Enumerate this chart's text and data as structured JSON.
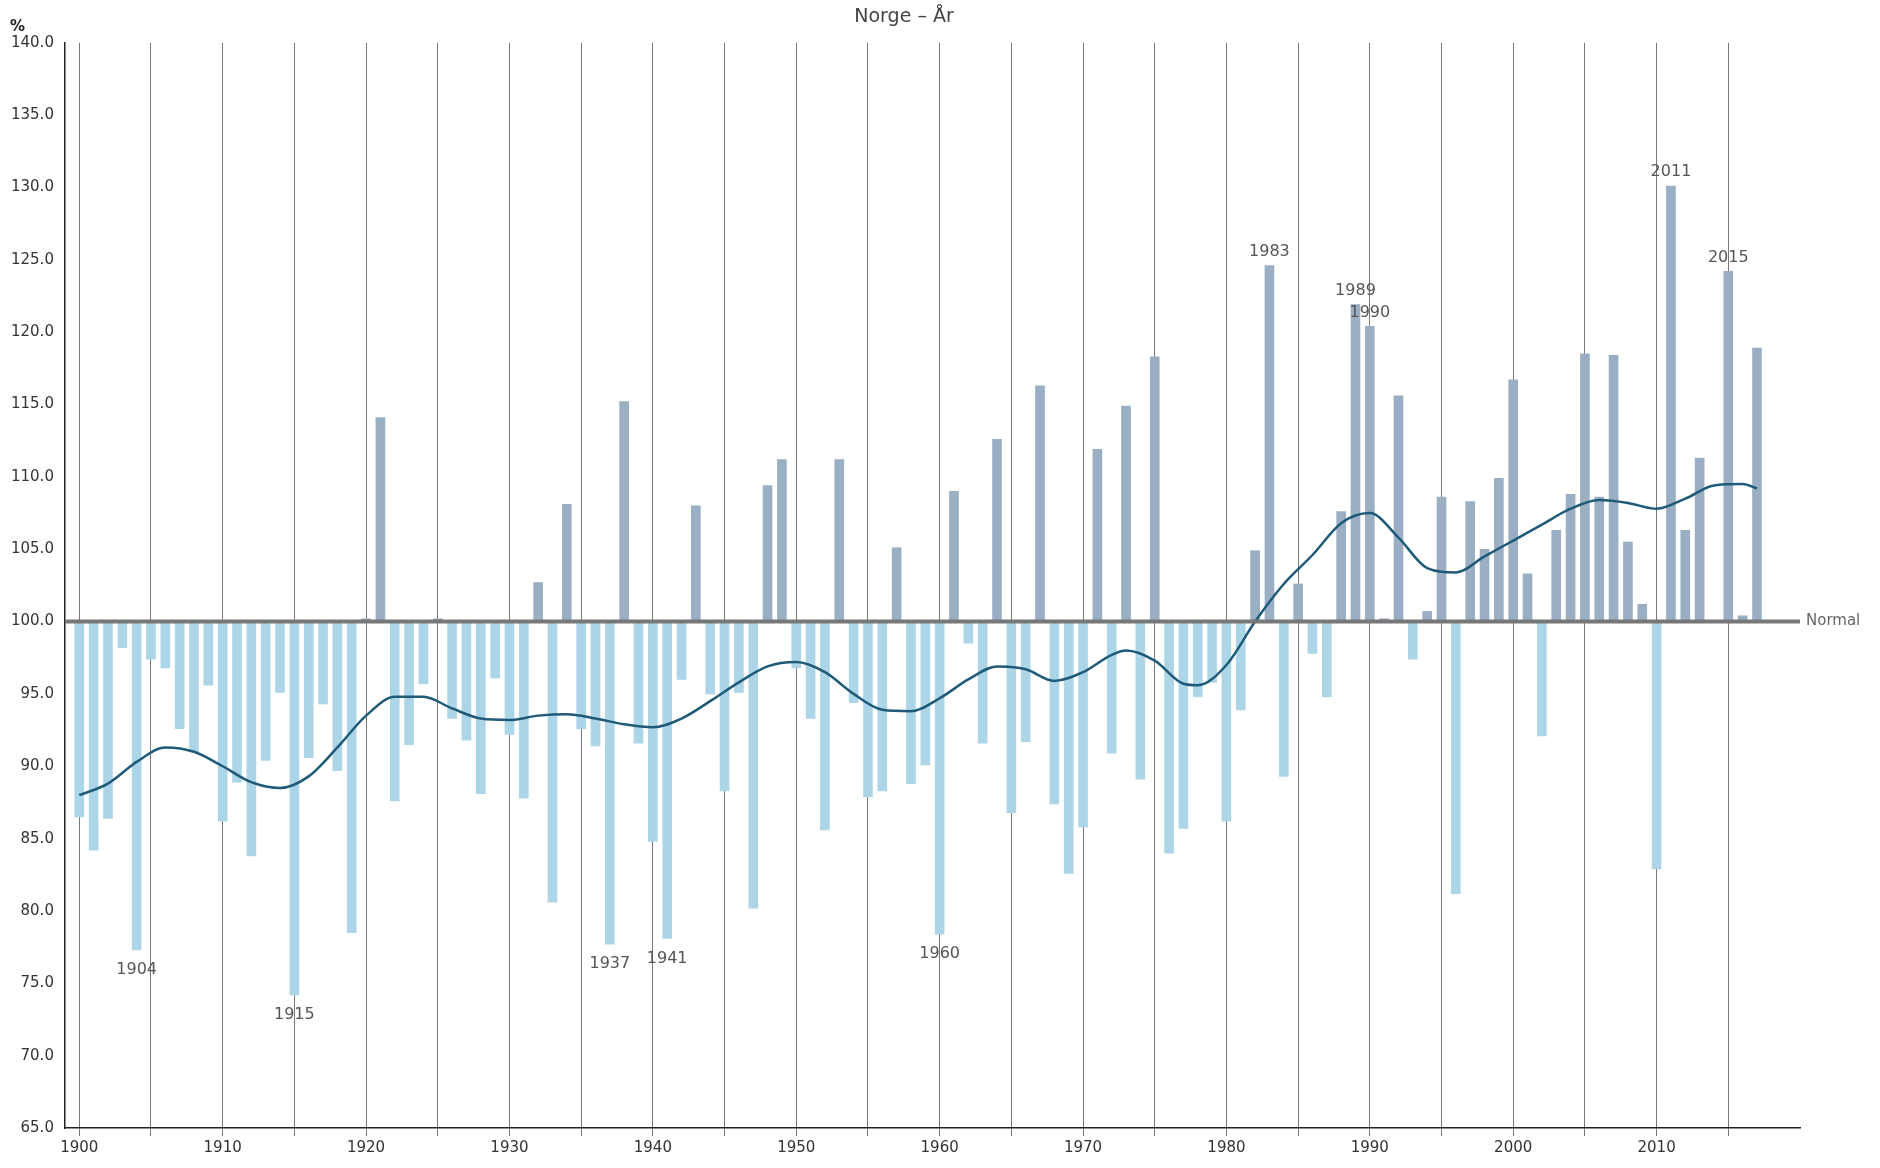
{
  "chart_data": {
    "type": "bar",
    "title": "Norge – År",
    "ylabel": "%",
    "x": [
      1900,
      1901,
      1902,
      1903,
      1904,
      1905,
      1906,
      1907,
      1908,
      1909,
      1910,
      1911,
      1912,
      1913,
      1914,
      1915,
      1916,
      1917,
      1918,
      1919,
      1920,
      1921,
      1922,
      1923,
      1924,
      1925,
      1926,
      1927,
      1928,
      1929,
      1930,
      1931,
      1932,
      1933,
      1934,
      1935,
      1936,
      1937,
      1938,
      1939,
      1940,
      1941,
      1942,
      1943,
      1944,
      1945,
      1946,
      1947,
      1948,
      1949,
      1950,
      1951,
      1952,
      1953,
      1954,
      1955,
      1956,
      1957,
      1958,
      1959,
      1960,
      1961,
      1962,
      1963,
      1964,
      1965,
      1966,
      1967,
      1968,
      1969,
      1970,
      1971,
      1972,
      1973,
      1974,
      1975,
      1976,
      1977,
      1978,
      1979,
      1980,
      1981,
      1982,
      1983,
      1984,
      1985,
      1986,
      1987,
      1988,
      1989,
      1990,
      1991,
      1992,
      1993,
      1994,
      1995,
      1996,
      1997,
      1998,
      1999,
      2000,
      2001,
      2002,
      2003,
      2004,
      2005,
      2006,
      2007,
      2008,
      2009,
      2010,
      2011,
      2012,
      2013,
      2014,
      2015,
      2016,
      2017
    ],
    "series": [
      {
        "base": [
          100,
          100,
          100,
          100,
          100,
          100,
          100,
          100,
          100,
          100,
          100,
          100,
          100,
          100,
          100,
          100,
          100,
          100,
          100,
          100,
          100,
          100,
          100,
          100,
          100,
          100,
          100,
          100,
          100,
          100,
          100,
          100,
          100,
          100,
          100,
          100,
          100,
          100,
          100,
          100,
          100,
          100,
          100,
          100,
          100,
          100,
          100,
          100,
          100,
          100,
          100,
          100,
          100,
          100,
          100,
          100,
          100,
          100,
          100,
          100,
          100,
          100,
          100,
          100,
          100,
          100,
          100,
          100,
          100,
          100,
          100,
          100,
          100,
          100,
          100,
          100,
          100,
          100,
          100,
          100,
          100,
          100,
          100,
          100,
          100,
          100,
          100,
          100,
          100,
          100,
          100,
          100,
          100,
          100,
          100,
          100,
          100,
          100,
          100,
          100,
          100,
          100,
          100,
          100,
          100,
          100,
          100,
          100,
          100,
          100,
          100,
          100,
          100,
          100,
          null,
          100,
          100,
          100
        ],
        "values": [
          -13.5,
          -15.8,
          -13.6,
          -1.8,
          -22.7,
          -2.6,
          -3.2,
          -7.4,
          -9.0,
          -4.4,
          -13.8,
          -11.1,
          -16.2,
          -9.6,
          -4.9,
          -25.8,
          -9.4,
          -5.7,
          -10.3,
          -21.5,
          0.2,
          14.1,
          -12.4,
          -8.5,
          -4.3,
          0.2,
          -6.7,
          -8.2,
          -11.9,
          -3.9,
          -7.8,
          -12.2,
          2.7,
          -19.4,
          8.1,
          -7.4,
          -8.6,
          -22.3,
          15.2,
          -8.4,
          -15.2,
          -21.9,
          -4.0,
          8.0,
          -5.0,
          -11.7,
          -4.9,
          -19.8,
          9.4,
          11.2,
          -3.2,
          -6.7,
          -14.4,
          11.2,
          -5.6,
          -12.1,
          -11.7,
          5.1,
          -11.2,
          -9.9,
          -21.6,
          9.0,
          -1.5,
          -8.4,
          12.6,
          -13.2,
          -8.3,
          16.3,
          -12.6,
          -17.4,
          -14.2,
          11.9,
          -9.1,
          14.9,
          -10.9,
          18.3,
          -16.0,
          -14.3,
          -5.2,
          -4.2,
          -13.8,
          -6.1,
          4.9,
          24.6,
          -10.7,
          2.6,
          -2.2,
          -5.2,
          7.6,
          21.9,
          20.4,
          0.2,
          15.6,
          -2.6,
          0.7,
          8.6,
          -18.8,
          8.3,
          5.0,
          9.9,
          16.7,
          3.3,
          -7.9,
          6.3,
          8.8,
          18.5,
          8.6,
          18.4,
          5.5,
          1.2,
          -17.1,
          30.1,
          6.3,
          11.3,
          null,
          24.2,
          0.4,
          18.9
        ],
        "colors": [
          "#acd6e8",
          "#acd6e8",
          "#acd6e8",
          "#acd6e8",
          "#acd6e8",
          "#acd6e8",
          "#acd6e8",
          "#acd6e8",
          "#acd6e8",
          "#acd6e8",
          "#acd6e8",
          "#acd6e8",
          "#acd6e8",
          "#acd6e8",
          "#acd6e8",
          "#acd6e8",
          "#acd6e8",
          "#acd6e8",
          "#acd6e8",
          "#acd6e8",
          "#9aafc3",
          "#9aafc3",
          "#acd6e8",
          "#acd6e8",
          "#acd6e8",
          "#9aafc3",
          "#acd6e8",
          "#acd6e8",
          "#acd6e8",
          "#acd6e8",
          "#acd6e8",
          "#acd6e8",
          "#9aafc3",
          "#acd6e8",
          "#9aafc3",
          "#acd6e8",
          "#acd6e8",
          "#acd6e8",
          "#9aafc3",
          "#acd6e8",
          "#acd6e8",
          "#acd6e8",
          "#acd6e8",
          "#9aafc3",
          "#acd6e8",
          "#acd6e8",
          "#acd6e8",
          "#acd6e8",
          "#9aafc3",
          "#9aafc3",
          "#acd6e8",
          "#acd6e8",
          "#acd6e8",
          "#9aafc3",
          "#acd6e8",
          "#acd6e8",
          "#acd6e8",
          "#9aafc3",
          "#acd6e8",
          "#acd6e8",
          "#acd6e8",
          "#9aafc3",
          "#acd6e8",
          "#acd6e8",
          "#9aafc3",
          "#acd6e8",
          "#acd6e8",
          "#9aafc3",
          "#acd6e8",
          "#acd6e8",
          "#acd6e8",
          "#9aafc3",
          "#acd6e8",
          "#9aafc3",
          "#acd6e8",
          "#9aafc3",
          "#acd6e8",
          "#acd6e8",
          "#acd6e8",
          "#acd6e8",
          "#acd6e8",
          "#acd6e8",
          "#9aafc3",
          "#9aafc3",
          "#acd6e8",
          "#9aafc3",
          "#acd6e8",
          "#acd6e8",
          "#9aafc3",
          "#9aafc3",
          "#9aafc3",
          "#9aafc3",
          "#9aafc3",
          "#acd6e8",
          "#9aafc3",
          "#9aafc3",
          "#acd6e8",
          "#9aafc3",
          "#9aafc3",
          "#9aafc3",
          "#9aafc3",
          "#9aafc3",
          "#acd6e8",
          "#9aafc3",
          "#9aafc3",
          "#9aafc3",
          "#9aafc3",
          "#9aafc3",
          "#9aafc3",
          "#9aafc3",
          "#acd6e8",
          "#9aafc3",
          "#9aafc3",
          "#9aafc3",
          null,
          "#9aafc3",
          "#9aafc3",
          "#9aafc3"
        ]
      },
      {
        "type": "line",
        "color": "#1f5a78",
        "x": [
          1900,
          1902,
          1904,
          1906,
          1908,
          1910,
          1912,
          1914,
          1916,
          1918,
          1920,
          1922,
          1924,
          1926,
          1928,
          1930,
          1932,
          1934,
          1936,
          1938,
          1940,
          1942,
          1944,
          1946,
          1948,
          1950,
          1952,
          1954,
          1956,
          1958,
          1960,
          1962,
          1964,
          1966,
          1968,
          1970,
          1972,
          1973,
          1975,
          1977,
          1978,
          1980,
          1982,
          1984,
          1986,
          1988,
          1990,
          1992,
          1994,
          1996,
          1998,
          2000,
          2002,
          2004,
          2006,
          2008,
          2010,
          2012,
          2014,
          2016,
          2017
        ],
        "values": [
          88.0,
          88.8,
          90.3,
          91.3,
          91.0,
          90.0,
          88.9,
          88.5,
          89.3,
          91.3,
          93.5,
          94.8,
          94.8,
          94.0,
          93.3,
          93.2,
          93.5,
          93.6,
          93.3,
          92.9,
          92.7,
          93.3,
          94.5,
          95.8,
          96.9,
          97.2,
          96.5,
          95.0,
          93.9,
          93.8,
          94.7,
          96.0,
          96.9,
          96.7,
          95.9,
          96.5,
          97.7,
          98.0,
          97.3,
          95.7,
          95.6,
          97.0,
          100.0,
          102.6,
          104.6,
          106.8,
          107.5,
          105.8,
          103.7,
          103.4,
          104.5,
          105.6,
          106.7,
          107.8,
          108.4,
          108.2,
          107.8,
          108.5,
          109.4,
          109.5,
          109.2
        ]
      }
    ],
    "xlim": [
      1899,
      2020
    ],
    "xticks": [
      1900,
      {
        "value": 1905,
        "label": null
      },
      1910,
      {
        "value": 1915,
        "label": null
      },
      1920,
      {
        "value": 1925,
        "label": null
      },
      1930,
      {
        "value": 1935,
        "label": null
      },
      1940,
      {
        "value": 1945,
        "label": null
      },
      1950,
      {
        "value": 1955,
        "label": null
      },
      1960,
      {
        "value": 1965,
        "label": null
      },
      1970,
      {
        "value": 1975,
        "label": null
      },
      1980,
      {
        "value": 1985,
        "label": null
      },
      1990,
      {
        "value": 1995,
        "label": null
      },
      2000,
      {
        "value": 2005,
        "label": null
      },
      2010,
      {
        "value": 2015,
        "label": null
      }
    ],
    "ylim": [
      65,
      140
    ],
    "yticks": [
      {
        "value": 65,
        "label": "65.0"
      },
      {
        "value": 70,
        "label": "70.0"
      },
      {
        "value": 75,
        "label": "75.0"
      },
      {
        "value": 80,
        "label": "80.0"
      },
      {
        "value": 85,
        "label": "85.0"
      },
      {
        "value": 90,
        "label": "90.0"
      },
      {
        "value": 95,
        "label": "95.0"
      },
      {
        "value": 100,
        "label": "100.0"
      },
      {
        "value": 105,
        "label": "105.0"
      },
      {
        "value": 110,
        "label": "110.0"
      },
      {
        "value": 115,
        "label": "115.0"
      },
      {
        "value": 120,
        "label": "120.0"
      },
      {
        "value": 125,
        "label": "125.0"
      },
      {
        "value": 130,
        "label": "130.0"
      },
      {
        "value": 135,
        "label": "135.0"
      },
      {
        "value": 140,
        "label": "140.0"
      }
    ],
    "grid": "x",
    "legend": false,
    "marker": "none",
    "line_style": "solid",
    "ref_lines": [
      {
        "axis": "y",
        "value": 100,
        "label": "Normal",
        "color": "#777777"
      }
    ],
    "annotations": [
      {
        "text": "1904",
        "x": 1904,
        "y": 77.3
      },
      {
        "text": "1915",
        "x": 1915,
        "y": 74.2
      },
      {
        "text": "1937",
        "x": 1937,
        "y": 77.7
      },
      {
        "text": "1941",
        "x": 1941,
        "y": 78.1
      },
      {
        "text": "1960",
        "x": 1960,
        "y": 78.4
      },
      {
        "text": "1983",
        "x": 1983,
        "y": 124.6
      },
      {
        "text": "1989",
        "x": 1989,
        "y": 121.9
      },
      {
        "text": "1990",
        "x": 1990,
        "y": 120.4
      },
      {
        "text": "2011",
        "x": 2011,
        "y": 130.1
      },
      {
        "text": "2015",
        "x": 2015,
        "y": 124.2
      }
    ]
  }
}
